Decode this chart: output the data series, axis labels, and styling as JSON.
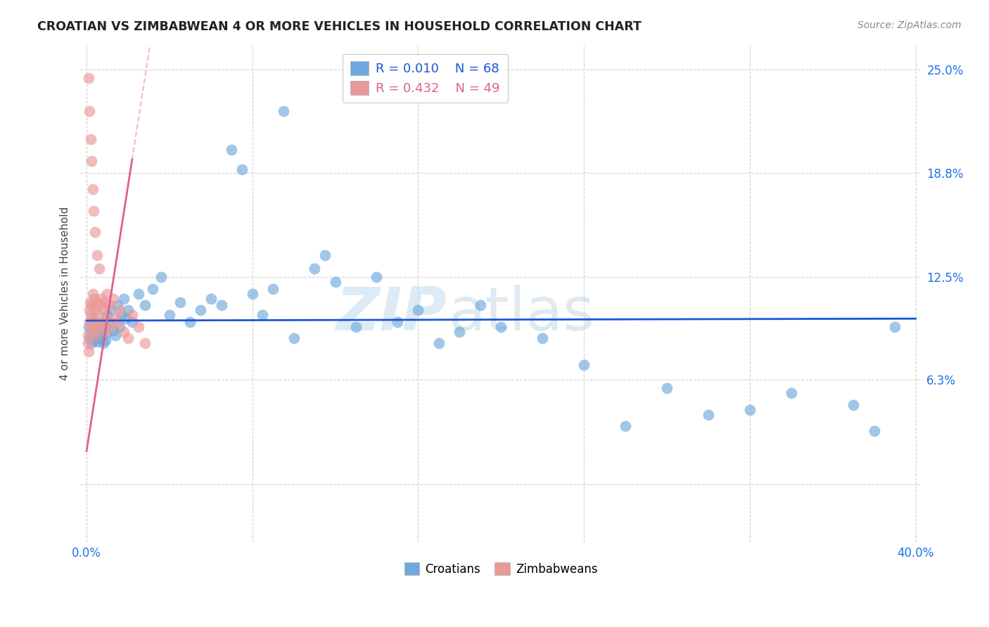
{
  "title": "CROATIAN VS ZIMBABWEAN 4 OR MORE VEHICLES IN HOUSEHOLD CORRELATION CHART",
  "source_text": "Source: ZipAtlas.com",
  "ylabel": "4 or more Vehicles in Household",
  "watermark_zip": "ZIP",
  "watermark_atlas": "atlas",
  "x_min": 0.0,
  "x_max": 40.0,
  "y_min": -3.5,
  "y_max": 26.5,
  "y_ticks": [
    0.0,
    6.3,
    12.5,
    18.8,
    25.0
  ],
  "x_ticks": [
    0.0,
    8.0,
    16.0,
    24.0,
    32.0,
    40.0
  ],
  "y_tick_labels": [
    "",
    "6.3%",
    "12.5%",
    "18.8%",
    "25.0%"
  ],
  "croatian_color": "#6fa8dc",
  "zimbabwean_color": "#ea9999",
  "croatian_line_color": "#1a56db",
  "zimbabwean_line_color": "#e06090",
  "legend_r1": "R = 0.010",
  "legend_n1": "N = 68",
  "legend_r2": "R = 0.432",
  "legend_n2": "N = 49",
  "grid_color": "#d0d0d0",
  "background_color": "#ffffff",
  "fig_width": 14.06,
  "fig_height": 8.92,
  "dpi": 100,
  "cro_x": [
    0.1,
    0.15,
    0.2,
    0.25,
    0.3,
    0.35,
    0.4,
    0.45,
    0.5,
    0.55,
    0.6,
    0.65,
    0.7,
    0.75,
    0.8,
    0.85,
    0.9,
    0.95,
    1.0,
    1.1,
    1.2,
    1.3,
    1.4,
    1.5,
    1.6,
    1.7,
    1.8,
    1.9,
    2.0,
    2.2,
    2.5,
    2.8,
    3.2,
    3.6,
    4.0,
    4.5,
    5.0,
    5.5,
    6.0,
    6.5,
    7.0,
    7.5,
    8.0,
    8.5,
    9.0,
    10.0,
    11.0,
    12.0,
    13.0,
    14.0,
    15.0,
    16.0,
    17.0,
    18.0,
    19.0,
    20.0,
    22.0,
    24.0,
    26.0,
    28.0,
    30.0,
    32.0,
    34.0,
    37.0,
    38.0,
    39.0,
    9.5,
    11.5
  ],
  "cro_y": [
    9.5,
    8.8,
    9.2,
    8.5,
    9.0,
    8.7,
    9.3,
    8.9,
    9.1,
    8.6,
    9.4,
    8.8,
    9.2,
    9.0,
    8.5,
    9.6,
    8.7,
    9.1,
    10.2,
    9.8,
    10.5,
    9.3,
    9.0,
    10.8,
    9.5,
    10.2,
    11.2,
    10.0,
    10.5,
    9.8,
    11.5,
    10.8,
    11.8,
    12.5,
    10.2,
    11.0,
    9.8,
    10.5,
    11.2,
    10.8,
    20.2,
    19.0,
    11.5,
    10.2,
    11.8,
    8.8,
    13.0,
    12.2,
    9.5,
    12.5,
    9.8,
    10.5,
    8.5,
    9.2,
    10.8,
    9.5,
    8.8,
    7.2,
    3.5,
    5.8,
    4.2,
    4.5,
    5.5,
    4.8,
    3.2,
    9.5,
    22.5,
    13.8
  ],
  "zim_x": [
    0.05,
    0.08,
    0.1,
    0.12,
    0.15,
    0.18,
    0.2,
    0.22,
    0.25,
    0.28,
    0.3,
    0.33,
    0.35,
    0.38,
    0.4,
    0.42,
    0.45,
    0.48,
    0.5,
    0.55,
    0.6,
    0.65,
    0.7,
    0.75,
    0.8,
    0.85,
    0.9,
    0.95,
    1.0,
    1.1,
    1.2,
    1.3,
    1.4,
    1.5,
    1.6,
    1.8,
    2.0,
    2.2,
    2.5,
    2.8,
    0.1,
    0.15,
    0.2,
    0.25,
    0.3,
    0.35,
    0.4,
    0.5,
    0.6
  ],
  "zim_y": [
    9.0,
    8.5,
    8.0,
    10.5,
    9.8,
    11.0,
    10.2,
    9.5,
    10.8,
    9.2,
    11.5,
    10.0,
    9.8,
    11.2,
    10.5,
    9.0,
    10.8,
    9.5,
    11.0,
    10.2,
    9.5,
    10.8,
    11.2,
    9.8,
    10.5,
    11.0,
    9.2,
    10.0,
    11.5,
    10.8,
    9.5,
    11.2,
    10.0,
    9.8,
    10.5,
    9.2,
    8.8,
    10.2,
    9.5,
    8.5,
    24.5,
    22.5,
    20.8,
    19.5,
    17.8,
    16.5,
    15.2,
    13.8,
    13.0
  ],
  "zim_line_x0": 0.0,
  "zim_line_x1": 3.2,
  "zim_line_dash_x0": 1.5,
  "zim_line_dash_x1": 4.0
}
